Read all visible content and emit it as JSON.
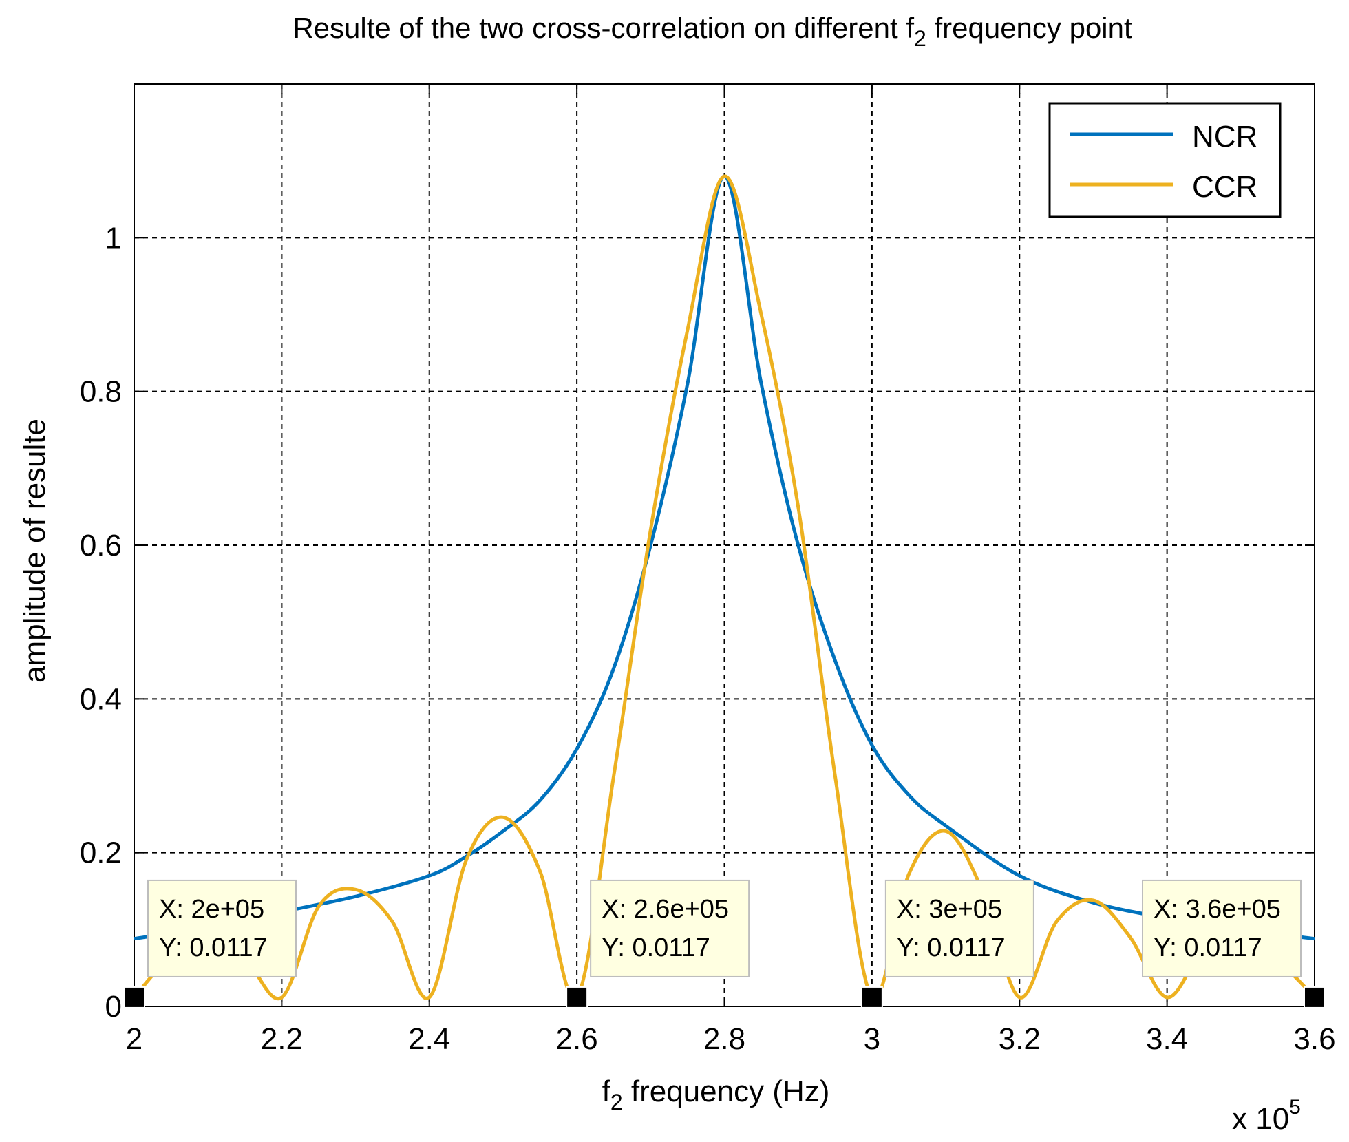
{
  "chart_data": {
    "type": "line",
    "title": "Resulte of the two cross-correlation on different f",
    "title_subscript": "2",
    "title_suffix": " frequency point",
    "xlabel_prefix": "f",
    "xlabel_subscript": "2",
    "xlabel_suffix": " frequency (Hz)",
    "ylabel": "amplitude of resulte",
    "x_exponent_base": "x 10",
    "x_exponent_power": "5",
    "xlim": [
      2.0,
      3.6
    ],
    "ylim": [
      0,
      1.2
    ],
    "xticks": [
      2.0,
      2.2,
      2.4,
      2.6,
      2.8,
      3.0,
      3.2,
      3.4,
      3.6
    ],
    "xtick_labels": [
      "2",
      "2.2",
      "2.4",
      "2.6",
      "2.8",
      "3",
      "3.2",
      "3.4",
      "3.6"
    ],
    "yticks": [
      0,
      0.2,
      0.4,
      0.6,
      0.8,
      1.0
    ],
    "ytick_labels": [
      "0",
      "0.2",
      "0.4",
      "0.6",
      "0.8",
      "1"
    ],
    "grid": true,
    "legend_position": "top-right",
    "series": [
      {
        "name": "NCR",
        "color": "#0072BD",
        "x": [
          2.0,
          2.1,
          2.2,
          2.3,
          2.4,
          2.45,
          2.5,
          2.55,
          2.6,
          2.65,
          2.7,
          2.75,
          2.8,
          2.85,
          2.9,
          2.95,
          3.0,
          3.05,
          3.1,
          3.2,
          3.3,
          3.4,
          3.5,
          3.6
        ],
        "y": [
          0.088,
          0.103,
          0.123,
          0.143,
          0.17,
          0.195,
          0.228,
          0.268,
          0.335,
          0.44,
          0.6,
          0.81,
          1.08,
          0.81,
          0.6,
          0.45,
          0.34,
          0.275,
          0.235,
          0.17,
          0.135,
          0.115,
          0.1,
          0.088
        ]
      },
      {
        "name": "CCR",
        "color": "#EDB120",
        "x": [
          2.0,
          2.05,
          2.1,
          2.15,
          2.2,
          2.25,
          2.3,
          2.35,
          2.4,
          2.45,
          2.5,
          2.55,
          2.6,
          2.65,
          2.7,
          2.75,
          2.8,
          2.85,
          2.9,
          2.95,
          3.0,
          3.05,
          3.1,
          3.15,
          3.2,
          3.25,
          3.3,
          3.35,
          3.4,
          3.45,
          3.5,
          3.55,
          3.6
        ],
        "y": [
          0.0117,
          0.065,
          0.083,
          0.062,
          0.0117,
          0.13,
          0.152,
          0.11,
          0.0117,
          0.19,
          0.246,
          0.176,
          0.0117,
          0.3,
          0.62,
          0.88,
          1.08,
          0.9,
          0.65,
          0.3,
          0.0117,
          0.172,
          0.228,
          0.15,
          0.0117,
          0.11,
          0.138,
          0.09,
          0.0117,
          0.075,
          0.09,
          0.06,
          0.0117
        ]
      }
    ],
    "datatips": [
      {
        "x": 2.0,
        "y": 0.0117,
        "x_text": "X: 2e+05",
        "y_text": "Y: 0.0117"
      },
      {
        "x": 2.6,
        "y": 0.0117,
        "x_text": "X: 2.6e+05",
        "y_text": "Y: 0.0117"
      },
      {
        "x": 3.0,
        "y": 0.0117,
        "x_text": "X: 3e+05",
        "y_text": "Y: 0.0117"
      },
      {
        "x": 3.6,
        "y": 0.0117,
        "x_text": "X: 3.6e+05",
        "y_text": "Y: 0.0117"
      }
    ]
  }
}
